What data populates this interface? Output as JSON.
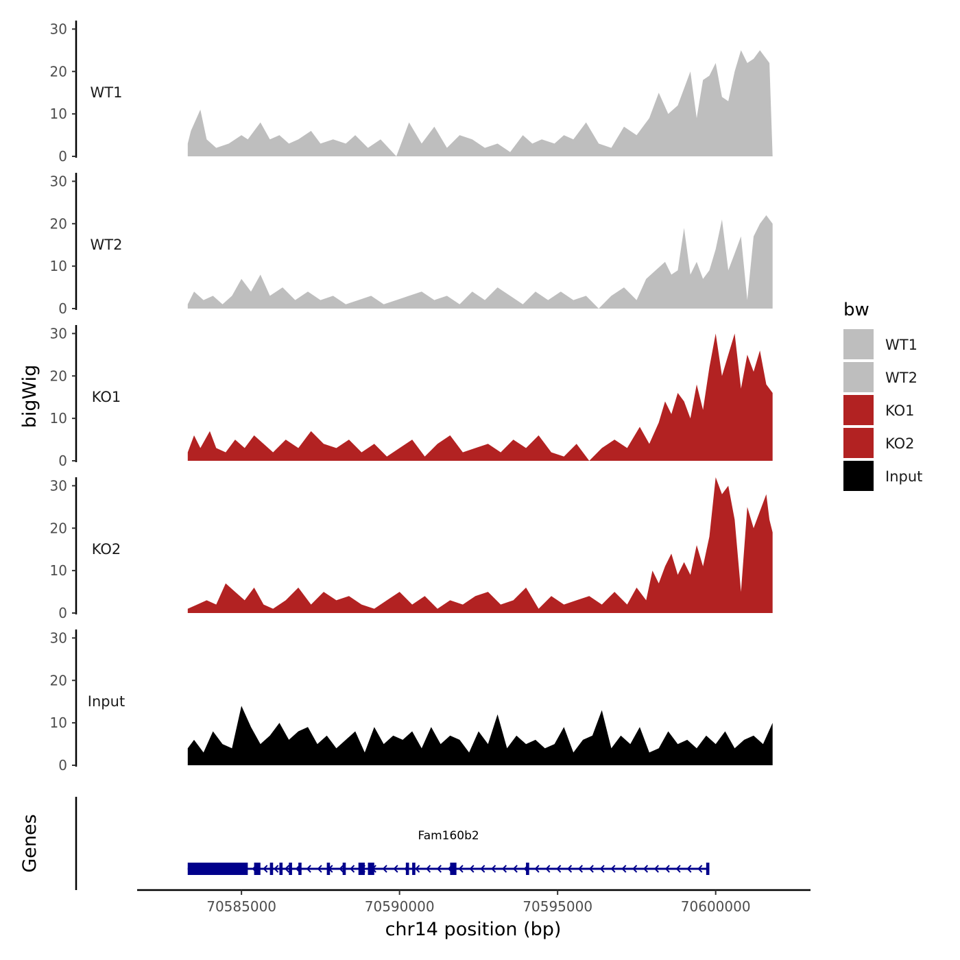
{
  "chart_data": {
    "type": "area",
    "chromosome": "chr14",
    "ylabel": "bigWig",
    "xlabel": "chr14 position (bp)",
    "xlim": [
      70581700,
      70603000
    ],
    "ylim": [
      0,
      32
    ],
    "y_ticks": [
      0,
      10,
      20,
      30
    ],
    "x_ticks": [
      70585000,
      70590000,
      70595000,
      70600000
    ],
    "x_tick_labels": [
      "70585000",
      "70590000",
      "70595000",
      "70600000"
    ],
    "legend": {
      "title": "bw",
      "position": "right",
      "entries": [
        {
          "label": "WT1",
          "color": "#BEBEBE"
        },
        {
          "label": "WT2",
          "color": "#BEBEBE"
        },
        {
          "label": "KO1",
          "color": "#B22222"
        },
        {
          "label": "KO2",
          "color": "#B22222"
        },
        {
          "label": "Input",
          "color": "#000000"
        }
      ]
    },
    "series": [
      {
        "name": "WT1",
        "color": "#BEBEBE",
        "x": [
          70583300,
          70583400,
          70583700,
          70583900,
          70584200,
          70584600,
          70585000,
          70585200,
          70585600,
          70585900,
          70586200,
          70586500,
          70586800,
          70587200,
          70587500,
          70587900,
          70588300,
          70588600,
          70589000,
          70589400,
          70589900,
          70590300,
          70590700,
          70591100,
          70591500,
          70591900,
          70592300,
          70592700,
          70593100,
          70593500,
          70593900,
          70594200,
          70594500,
          70594900,
          70595200,
          70595500,
          70595900,
          70596300,
          70596700,
          70597100,
          70597500,
          70597900,
          70598200,
          70598500,
          70598800,
          70599000,
          70599200,
          70599400,
          70599600,
          70599800,
          70600000,
          70600200,
          70600400,
          70600600,
          70600800,
          70601000,
          70601200,
          70601400,
          70601700,
          70601800
        ],
        "values": [
          3,
          6,
          11,
          4,
          2,
          3,
          5,
          4,
          8,
          4,
          5,
          3,
          4,
          6,
          3,
          4,
          3,
          5,
          2,
          4,
          0,
          8,
          3,
          7,
          2,
          5,
          4,
          2,
          3,
          1,
          5,
          3,
          4,
          3,
          5,
          4,
          8,
          3,
          2,
          7,
          5,
          9,
          15,
          10,
          12,
          16,
          20,
          9,
          18,
          19,
          22,
          14,
          13,
          20,
          25,
          22,
          23,
          25,
          22,
          0
        ]
      },
      {
        "name": "WT2",
        "color": "#BEBEBE",
        "x": [
          70583300,
          70583500,
          70583800,
          70584100,
          70584400,
          70584700,
          70585000,
          70585300,
          70585600,
          70585900,
          70586300,
          70586700,
          70587100,
          70587500,
          70587900,
          70588300,
          70588700,
          70589100,
          70589500,
          70589900,
          70590300,
          70590700,
          70591100,
          70591500,
          70591900,
          70592300,
          70592700,
          70593100,
          70593500,
          70593900,
          70594300,
          70594700,
          70595100,
          70595500,
          70595900,
          70596300,
          70596700,
          70597100,
          70597500,
          70597800,
          70598100,
          70598400,
          70598600,
          70598800,
          70599000,
          70599200,
          70599400,
          70599600,
          70599800,
          70600000,
          70600200,
          70600400,
          70600600,
          70600800,
          70601000,
          70601200,
          70601400,
          70601600,
          70601800
        ],
        "values": [
          1,
          4,
          2,
          3,
          1,
          3,
          7,
          4,
          8,
          3,
          5,
          2,
          4,
          2,
          3,
          1,
          2,
          3,
          1,
          2,
          3,
          4,
          2,
          3,
          1,
          4,
          2,
          5,
          3,
          1,
          4,
          2,
          4,
          2,
          3,
          0,
          3,
          5,
          2,
          7,
          9,
          11,
          8,
          9,
          19,
          8,
          11,
          7,
          9,
          14,
          21,
          9,
          13,
          17,
          2,
          17,
          20,
          22,
          20
        ]
      },
      {
        "name": "KO1",
        "color": "#B22222",
        "x": [
          70583300,
          70583500,
          70583700,
          70584000,
          70584200,
          70584500,
          70584800,
          70585100,
          70585400,
          70585700,
          70586000,
          70586400,
          70586800,
          70587200,
          70587600,
          70588000,
          70588400,
          70588800,
          70589200,
          70589600,
          70590000,
          70590400,
          70590800,
          70591200,
          70591600,
          70592000,
          70592400,
          70592800,
          70593200,
          70593600,
          70594000,
          70594400,
          70594800,
          70595200,
          70595600,
          70596000,
          70596400,
          70596800,
          70597200,
          70597600,
          70597900,
          70598200,
          70598400,
          70598600,
          70598800,
          70599000,
          70599200,
          70599400,
          70599600,
          70599800,
          70600000,
          70600200,
          70600400,
          70600600,
          70600800,
          70601000,
          70601200,
          70601400,
          70601600,
          70601800
        ],
        "values": [
          2,
          6,
          3,
          7,
          3,
          2,
          5,
          3,
          6,
          4,
          2,
          5,
          3,
          7,
          4,
          3,
          5,
          2,
          4,
          1,
          3,
          5,
          1,
          4,
          6,
          2,
          3,
          4,
          2,
          5,
          3,
          6,
          2,
          1,
          4,
          0,
          3,
          5,
          3,
          8,
          4,
          9,
          14,
          11,
          16,
          14,
          10,
          18,
          12,
          22,
          30,
          20,
          25,
          30,
          17,
          25,
          21,
          26,
          18,
          16
        ]
      },
      {
        "name": "KO2",
        "color": "#B22222",
        "x": [
          70583300,
          70583600,
          70583900,
          70584200,
          70584500,
          70584800,
          70585100,
          70585400,
          70585700,
          70586000,
          70586400,
          70586800,
          70587200,
          70587600,
          70588000,
          70588400,
          70588800,
          70589200,
          70589600,
          70590000,
          70590400,
          70590800,
          70591200,
          70591600,
          70592000,
          70592400,
          70592800,
          70593200,
          70593600,
          70594000,
          70594400,
          70594800,
          70595200,
          70595600,
          70596000,
          70596400,
          70596800,
          70597200,
          70597500,
          70597800,
          70598000,
          70598200,
          70598400,
          70598600,
          70598800,
          70599000,
          70599200,
          70599400,
          70599600,
          70599800,
          70600000,
          70600200,
          70600400,
          70600600,
          70600800,
          70601000,
          70601200,
          70601400,
          70601600,
          70601700,
          70601800
        ],
        "values": [
          1,
          2,
          3,
          2,
          7,
          5,
          3,
          6,
          2,
          1,
          3,
          6,
          2,
          5,
          3,
          4,
          2,
          1,
          3,
          5,
          2,
          4,
          1,
          3,
          2,
          4,
          5,
          2,
          3,
          6,
          1,
          4,
          2,
          3,
          4,
          2,
          5,
          2,
          6,
          3,
          10,
          7,
          11,
          14,
          9,
          12,
          9,
          16,
          11,
          18,
          32,
          28,
          30,
          22,
          5,
          25,
          20,
          24,
          28,
          22,
          19
        ]
      },
      {
        "name": "Input",
        "color": "#000000",
        "x": [
          70583300,
          70583500,
          70583800,
          70584100,
          70584400,
          70584700,
          70585000,
          70585300,
          70585600,
          70585900,
          70586200,
          70586500,
          70586800,
          70587100,
          70587400,
          70587700,
          70588000,
          70588300,
          70588600,
          70588900,
          70589200,
          70589500,
          70589800,
          70590100,
          70590400,
          70590700,
          70591000,
          70591300,
          70591600,
          70591900,
          70592200,
          70592500,
          70592800,
          70593100,
          70593400,
          70593700,
          70594000,
          70594300,
          70594600,
          70594900,
          70595200,
          70595500,
          70595800,
          70596100,
          70596400,
          70596700,
          70597000,
          70597300,
          70597600,
          70597900,
          70598200,
          70598500,
          70598800,
          70599100,
          70599400,
          70599700,
          70600000,
          70600300,
          70600600,
          70600900,
          70601200,
          70601500,
          70601800
        ],
        "values": [
          4,
          6,
          3,
          8,
          5,
          4,
          14,
          9,
          5,
          7,
          10,
          6,
          8,
          9,
          5,
          7,
          4,
          6,
          8,
          3,
          9,
          5,
          7,
          6,
          8,
          4,
          9,
          5,
          7,
          6,
          3,
          8,
          5,
          12,
          4,
          7,
          5,
          6,
          4,
          5,
          9,
          3,
          6,
          7,
          13,
          4,
          7,
          5,
          9,
          3,
          4,
          8,
          5,
          6,
          4,
          7,
          5,
          8,
          4,
          6,
          7,
          5,
          10
        ]
      }
    ],
    "genes": [
      {
        "name": "Fam160b2",
        "start": 70583300,
        "end": 70599800,
        "strand": "-",
        "exons": [
          [
            70583300,
            70585200
          ],
          [
            70585400,
            70585600
          ],
          [
            70585900,
            70586000
          ],
          [
            70586200,
            70586300
          ],
          [
            70586500,
            70586600
          ],
          [
            70586800,
            70586900
          ],
          [
            70587700,
            70587800
          ],
          [
            70588200,
            70588300
          ],
          [
            70588700,
            70588900
          ],
          [
            70589000,
            70589200
          ],
          [
            70590200,
            70590300
          ],
          [
            70590400,
            70590500
          ],
          [
            70591600,
            70591800
          ],
          [
            70594000,
            70594100
          ],
          [
            70599700,
            70599800
          ]
        ]
      }
    ],
    "gene_panel_label": "Genes"
  }
}
